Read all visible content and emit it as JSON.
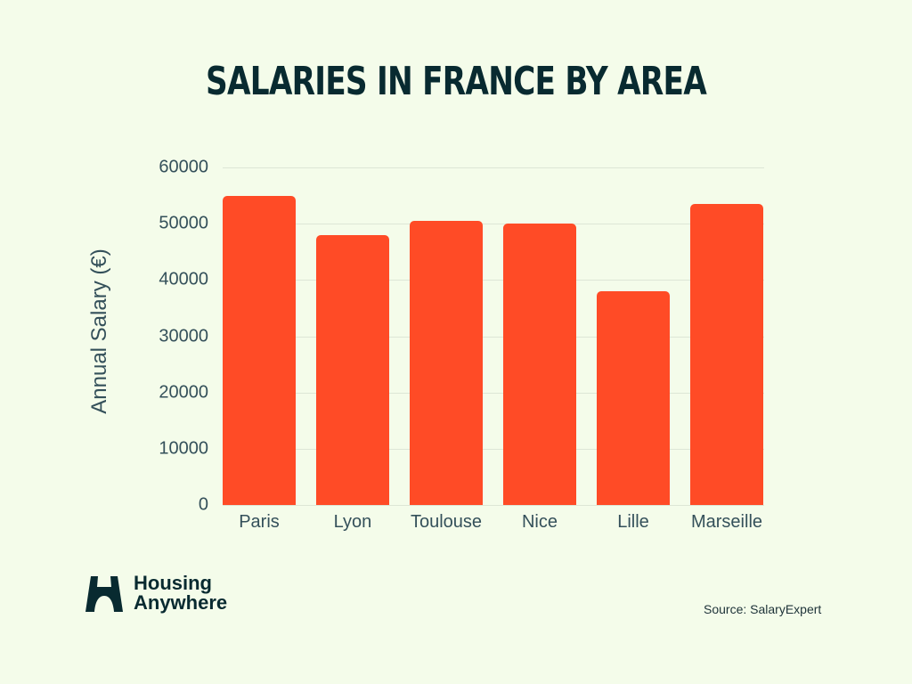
{
  "title": "SALARIES IN FRANCE BY AREA",
  "colors": {
    "background": "#f4fcea",
    "bar": "#ff4b26",
    "title": "#082a30",
    "axis_text": "#34505a",
    "gridline": "#dde6d6"
  },
  "axis": {
    "ylabel": "Annual Salary (€)",
    "yticks": [
      "60000",
      "50000",
      "40000",
      "30000",
      "20000",
      "10000",
      "0"
    ]
  },
  "brand": {
    "line1": "Housing",
    "line2": "Anywhere",
    "icon": "housing-anywhere-logo-icon"
  },
  "source": "Source: SalaryExpert",
  "chart_data": {
    "type": "bar",
    "title": "SALARIES IN FRANCE BY AREA",
    "xlabel": "",
    "ylabel": "Annual Salary (€)",
    "categories": [
      "Paris",
      "Lyon",
      "Toulouse",
      "Nice",
      "Lille",
      "Marseille"
    ],
    "values": [
      55000,
      48000,
      50500,
      50000,
      38000,
      53500
    ],
    "ylim": [
      0,
      60000
    ],
    "yticks": [
      0,
      10000,
      20000,
      30000,
      40000,
      50000,
      60000
    ],
    "grid": true,
    "legend": null,
    "source": "Source: SalaryExpert"
  }
}
